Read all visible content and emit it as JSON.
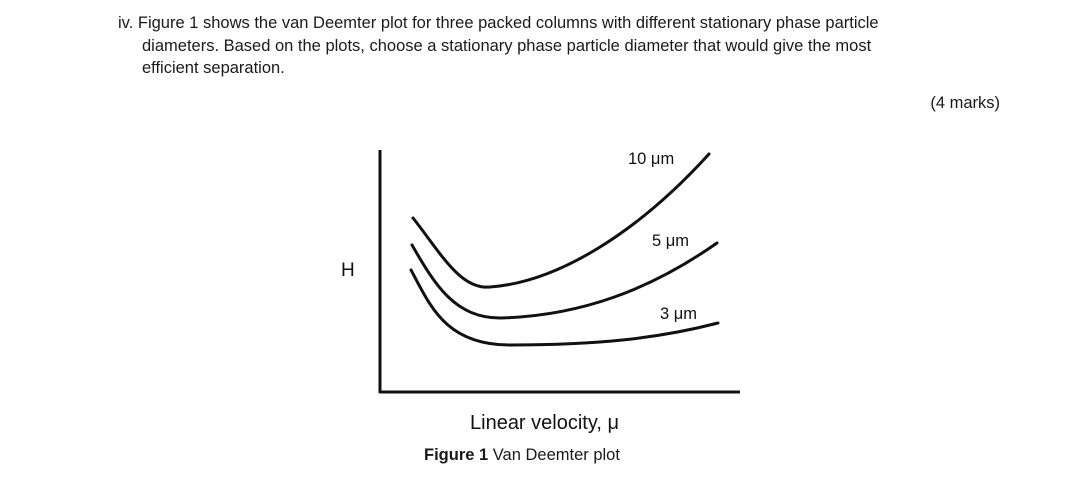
{
  "question": {
    "line1": "iv. Figure 1 shows the van Deemter plot for three packed columns with different stationary phase particle",
    "line2": "diameters. Based on the plots, choose a stationary phase particle diameter that would give the most",
    "line3": "efficient separation.",
    "marks": "(4 marks)"
  },
  "figure": {
    "caption_bold": "Figure 1",
    "caption_text": " Van Deemter plot"
  },
  "chart_data": {
    "type": "line",
    "ylabel": "H",
    "xlabel": "Linear velocity, μ",
    "grid": false,
    "legend": "labels on curves",
    "series": [
      {
        "name": "10 μm",
        "label": "10 μm"
      },
      {
        "name": "5 μm",
        "label": "5 μm"
      },
      {
        "name": "3 μm",
        "label": "3 μm"
      }
    ]
  }
}
